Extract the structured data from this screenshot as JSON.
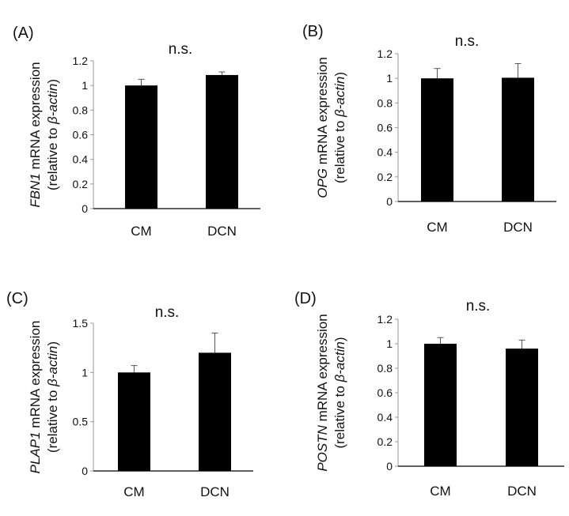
{
  "chart_data": [
    {
      "type": "bar",
      "panel_label": "(A)",
      "title": "n.s.",
      "ylabel_gene": "FBN1",
      "ylabel_rest": " mRNA expression",
      "ylabel_line2_pre": "(relative to ",
      "ylabel_line2_italic": "β-actin",
      "ylabel_line2_post": ")",
      "categories": [
        "CM",
        "DCN"
      ],
      "values": [
        1.0,
        1.085
      ],
      "errors": [
        0.05,
        0.025
      ],
      "ylim": [
        0,
        1.2
      ],
      "yticks": [
        "0",
        "0.2",
        "0.4",
        "0.6",
        "0.8",
        "1",
        "1.2"
      ],
      "ytick_values": [
        0,
        0.2,
        0.4,
        0.6,
        0.8,
        1,
        1.2
      ],
      "bar_color": "#000000",
      "grid": false
    },
    {
      "type": "bar",
      "panel_label": "(B)",
      "title": "n.s.",
      "ylabel_gene": "OPG",
      "ylabel_rest": " mRNA expression",
      "ylabel_line2_pre": "(relative to ",
      "ylabel_line2_italic": "β-actin",
      "ylabel_line2_post": ")",
      "categories": [
        "CM",
        "DCN"
      ],
      "values": [
        1.0,
        1.005
      ],
      "errors": [
        0.08,
        0.115
      ],
      "ylim": [
        0,
        1.2
      ],
      "yticks": [
        "0",
        "0.2",
        "0.4",
        "0.6",
        "0.8",
        "1",
        "1.2"
      ],
      "ytick_values": [
        0,
        0.2,
        0.4,
        0.6,
        0.8,
        1,
        1.2
      ],
      "bar_color": "#000000",
      "grid": false
    },
    {
      "type": "bar",
      "panel_label": "(C)",
      "title": "n.s.",
      "ylabel_gene": "PLAP1",
      "ylabel_rest": " mRNA expression",
      "ylabel_line2_pre": "(relative to ",
      "ylabel_line2_italic": "β-actin",
      "ylabel_line2_post": ")",
      "categories": [
        "CM",
        "DCN"
      ],
      "values": [
        1.0,
        1.2
      ],
      "errors": [
        0.07,
        0.2
      ],
      "ylim": [
        0,
        1.5
      ],
      "yticks": [
        "0",
        "0.5",
        "1",
        "1.5"
      ],
      "ytick_values": [
        0,
        0.5,
        1,
        1.5
      ],
      "bar_color": "#000000",
      "grid": false
    },
    {
      "type": "bar",
      "panel_label": "(D)",
      "title": "n.s.",
      "ylabel_gene": "POSTN",
      "ylabel_rest": " mRNA expression",
      "ylabel_line2_pre": "(relative to ",
      "ylabel_line2_italic": "β-actin",
      "ylabel_line2_post": ")",
      "categories": [
        "CM",
        "DCN"
      ],
      "values": [
        1.0,
        0.96
      ],
      "errors": [
        0.05,
        0.07
      ],
      "ylim": [
        0,
        1.2
      ],
      "yticks": [
        "0",
        "0.2",
        "0.4",
        "0.6",
        "0.8",
        "1",
        "1.2"
      ],
      "ytick_values": [
        0,
        0.2,
        0.4,
        0.6,
        0.8,
        1,
        1.2
      ],
      "bar_color": "#000000",
      "grid": false
    }
  ]
}
